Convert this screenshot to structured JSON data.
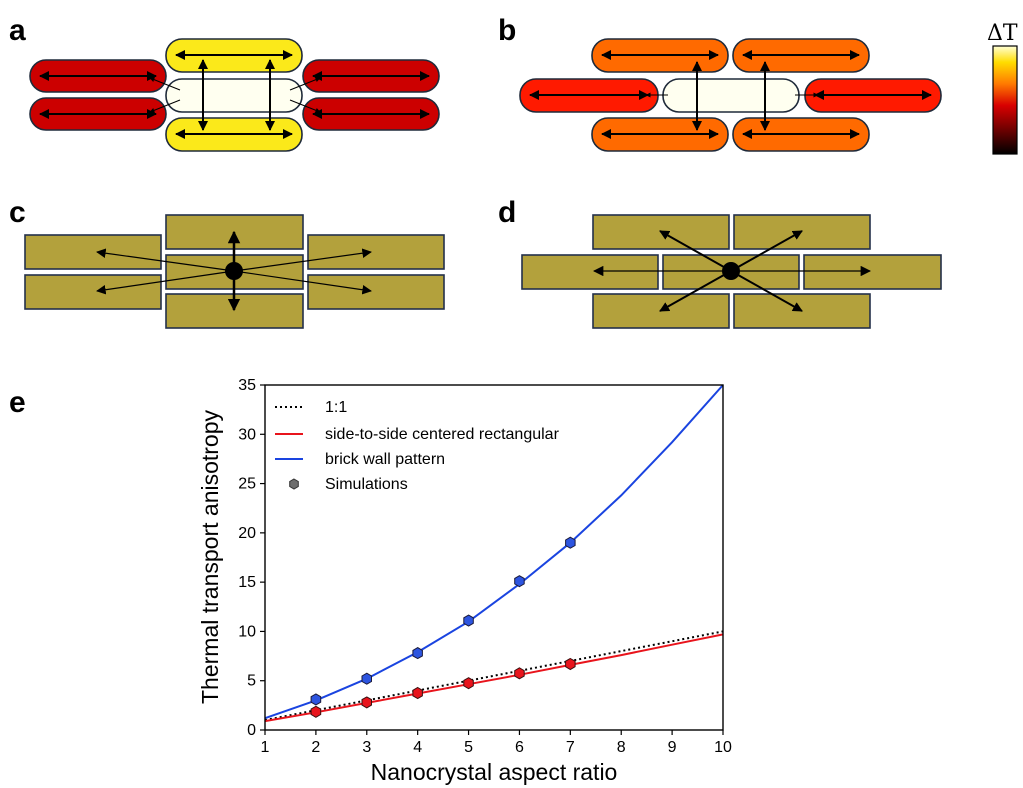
{
  "figure": {
    "panel_letters": {
      "a": "a",
      "b": "b",
      "c": "c",
      "d": "d",
      "e": "e"
    },
    "colorbar": {
      "label": "ΔT",
      "colors": [
        "#000000",
        "#7a0000",
        "#d80000",
        "#ff7a00",
        "#ffdd00",
        "#ffffd6"
      ]
    },
    "rod_colors": {
      "dark_red": "#cc0000",
      "yellow": "#fbe91a",
      "orange": "#ff6a00",
      "red": "#ff1a00",
      "pale": "#fffff0"
    },
    "brick_color": "#b3a13c"
  },
  "chart_data": {
    "type": "line",
    "xlabel": "Nanocrystal aspect ratio",
    "ylabel": "Thermal transport anisotropy",
    "xlim": [
      1,
      10
    ],
    "ylim": [
      0,
      35
    ],
    "xticks": [
      1,
      2,
      3,
      4,
      5,
      6,
      7,
      8,
      9,
      10
    ],
    "yticks": [
      0,
      5,
      10,
      15,
      20,
      25,
      30,
      35
    ],
    "legend_position": "top-left",
    "series": [
      {
        "name": "1:1",
        "style": "dotted",
        "color": "#000000",
        "x": [
          1,
          10
        ],
        "y": [
          1,
          10
        ]
      },
      {
        "name": "side-to-side centered rectangular",
        "style": "solid",
        "color": "#e8141c",
        "x": [
          1,
          2,
          3,
          4,
          5,
          6,
          7,
          8,
          9,
          10
        ],
        "y": [
          0.9,
          1.8,
          2.75,
          3.7,
          4.65,
          5.6,
          6.6,
          7.6,
          8.65,
          9.7
        ]
      },
      {
        "name": "brick wall pattern",
        "style": "solid",
        "color": "#1a44e0",
        "x": [
          1,
          2,
          3,
          4,
          5,
          6,
          7,
          8,
          9,
          10
        ],
        "y": [
          1.2,
          3.0,
          5.2,
          7.9,
          11.0,
          14.8,
          19.0,
          23.8,
          29.2,
          35.0
        ]
      },
      {
        "name": "Simulations",
        "style": "marker",
        "color": "#6e6e6e",
        "points_blue": {
          "x": [
            2,
            3,
            4,
            5,
            6,
            7
          ],
          "y": [
            3.1,
            5.2,
            7.8,
            11.1,
            15.1,
            19.0
          ]
        },
        "points_red": {
          "x": [
            2,
            3,
            4,
            5,
            6,
            7
          ],
          "y": [
            1.85,
            2.8,
            3.75,
            4.75,
            5.75,
            6.7
          ]
        }
      }
    ]
  }
}
